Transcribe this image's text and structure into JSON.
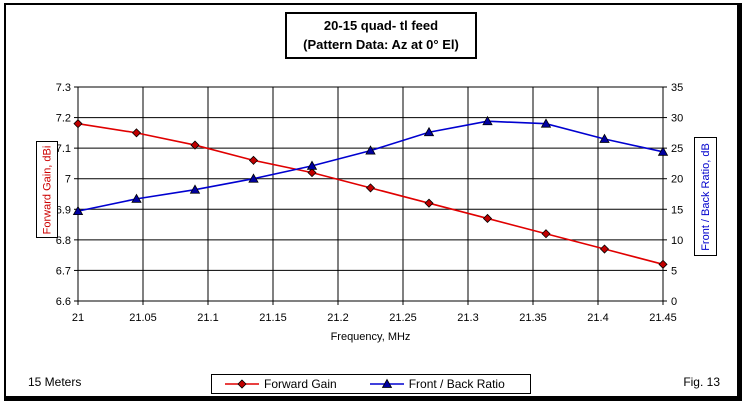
{
  "window": {
    "footer_left": "15 Meters",
    "footer_right": "Fig. 13"
  },
  "title": {
    "line1": "20-15 quad- tl feed",
    "line2": "(Pattern Data: Az at 0° El)"
  },
  "axes": {
    "x": {
      "title": "Frequency, MHz",
      "tick_labels": [
        "21",
        "21.05",
        "21.1",
        "21.15",
        "21.2",
        "21.25",
        "21.3",
        "21.35",
        "21.4",
        "21.45"
      ],
      "tick_values": [
        21.0,
        21.05,
        21.1,
        21.15,
        21.2,
        21.25,
        21.3,
        21.35,
        21.4,
        21.45
      ]
    },
    "y_left": {
      "title": "Forward Gain, dBi",
      "color": "#CC0000",
      "tick_labels": [
        "7.3",
        "7.2",
        "7.1",
        "7",
        "6.9",
        "6.8",
        "6.7",
        "6.6"
      ],
      "tick_values": [
        7.3,
        7.2,
        7.1,
        7.0,
        6.9,
        6.8,
        6.7,
        6.6
      ]
    },
    "y_right": {
      "title": "Front / Back Ratio, dB",
      "color": "#0000CC",
      "tick_labels": [
        "35",
        "30",
        "25",
        "20",
        "15",
        "10",
        "5",
        "0"
      ],
      "tick_values": [
        35,
        30,
        25,
        20,
        15,
        10,
        5,
        0
      ]
    }
  },
  "legend": {
    "items": [
      {
        "label": "Forward Gain",
        "marker": "diamond"
      },
      {
        "label": "Front / Back Ratio",
        "marker": "triangle"
      }
    ]
  },
  "chart_data": {
    "type": "line",
    "title": "20-15 quad- tl feed (Pattern Data: Az at 0° El)",
    "xlabel": "Frequency, MHz",
    "grid": true,
    "legend_position": "bottom",
    "x": [
      21.0,
      21.045,
      21.09,
      21.135,
      21.18,
      21.225,
      21.27,
      21.315,
      21.36,
      21.405,
      21.45
    ],
    "xlim": [
      21.0,
      21.45
    ],
    "series": [
      {
        "name": "Forward Gain",
        "axis": "left",
        "ylabel": "Forward Gain, dBi",
        "ylim": [
          6.6,
          7.3
        ],
        "color": "#E00000",
        "marker": "diamond",
        "marker_color": "#C00000",
        "values": [
          7.18,
          7.15,
          7.11,
          7.06,
          7.02,
          6.97,
          6.92,
          6.87,
          6.82,
          6.77,
          6.72
        ]
      },
      {
        "name": "Front / Back Ratio",
        "axis": "right",
        "ylabel": "Front / Back Ratio, dB",
        "ylim": [
          0,
          35
        ],
        "color": "#0000D0",
        "marker": "triangle",
        "marker_color": "#0000A0",
        "values": [
          14.7,
          16.7,
          18.2,
          20.0,
          22.1,
          24.6,
          27.6,
          29.4,
          29.0,
          26.5,
          24.4
        ]
      }
    ]
  }
}
